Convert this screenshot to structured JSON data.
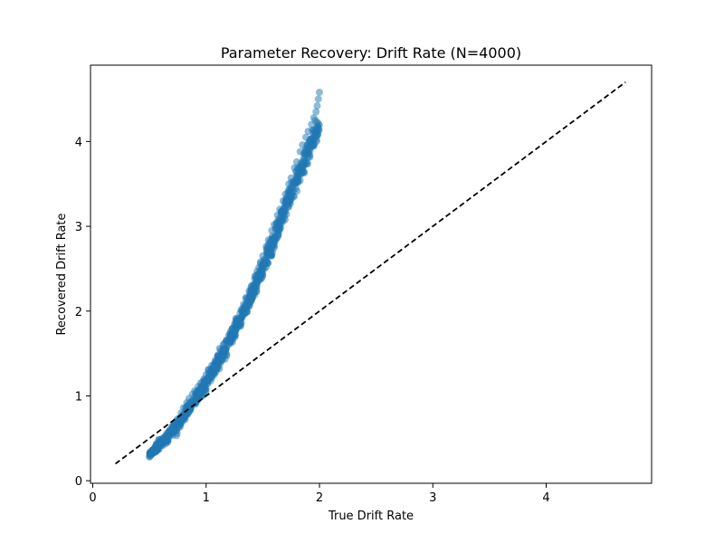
{
  "chart_data": {
    "type": "scatter",
    "title": "Parameter Recovery: Drift Rate (N=4000)",
    "xlabel": "True Drift Rate",
    "ylabel": "Recovered Drift Rate",
    "xlim": [
      -0.02,
      4.93
    ],
    "ylim": [
      -0.03,
      4.9
    ],
    "xticks": [
      0,
      1,
      2,
      3,
      4
    ],
    "yticks": [
      0,
      1,
      2,
      3,
      4
    ],
    "grid": false,
    "legend": "none",
    "colors": {
      "points": "#1f77b4",
      "identity_line": "#000000"
    },
    "series": [
      {
        "kind": "points",
        "trend": {
          "x_range": [
            0.5,
            2.0
          ],
          "nodes": [
            [
              0.5,
              0.3
            ],
            [
              0.75,
              0.65
            ],
            [
              1.0,
              1.15
            ],
            [
              1.25,
              1.75
            ],
            [
              1.5,
              2.5
            ],
            [
              1.75,
              3.4
            ],
            [
              2.0,
              4.2
            ]
          ]
        },
        "x": [
          0.5,
          0.52,
          0.55,
          0.58,
          0.6,
          0.63,
          0.65,
          0.68,
          0.7,
          0.72,
          0.75,
          0.78,
          0.8,
          0.83,
          0.85,
          0.88,
          0.9,
          0.93,
          0.95,
          0.98,
          1.0,
          1.02,
          1.05,
          1.08,
          1.1,
          1.13,
          1.15,
          1.18,
          1.2,
          1.23,
          1.25,
          1.28,
          1.3,
          1.33,
          1.35,
          1.38,
          1.4,
          1.43,
          1.45,
          1.48,
          1.5,
          1.53,
          1.55,
          1.58,
          1.6,
          1.63,
          1.65,
          1.68,
          1.7,
          1.73,
          1.75,
          1.78,
          1.8,
          1.83,
          1.85,
          1.88,
          1.9,
          1.93,
          1.95,
          1.97,
          1.98,
          1.99,
          2.0
        ],
        "y": [
          0.28,
          0.31,
          0.36,
          0.4,
          0.44,
          0.49,
          0.53,
          0.6,
          0.64,
          0.68,
          0.73,
          0.8,
          0.86,
          0.92,
          0.97,
          1.02,
          1.06,
          1.11,
          1.15,
          1.2,
          1.25,
          1.31,
          1.36,
          1.42,
          1.47,
          1.54,
          1.6,
          1.66,
          1.71,
          1.79,
          1.84,
          1.92,
          1.98,
          2.08,
          2.15,
          2.24,
          2.3,
          2.41,
          2.47,
          2.58,
          2.65,
          2.76,
          2.84,
          2.95,
          3.02,
          3.13,
          3.2,
          3.3,
          3.38,
          3.5,
          3.57,
          3.69,
          3.76,
          3.88,
          3.96,
          4.05,
          4.12,
          4.2,
          4.28,
          4.35,
          4.42,
          4.5,
          4.58
        ]
      },
      {
        "kind": "identity_line",
        "style": "dashed",
        "x": [
          0.2,
          4.7
        ],
        "y": [
          0.2,
          4.7
        ]
      }
    ]
  }
}
